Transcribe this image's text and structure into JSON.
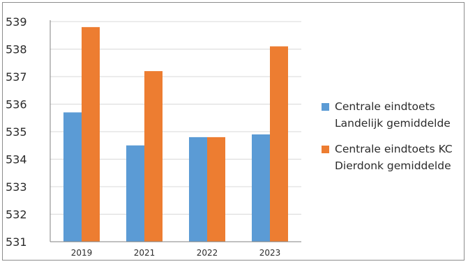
{
  "chart_data": {
    "type": "bar",
    "title": "",
    "xlabel": "",
    "ylabel": "",
    "categories": [
      "2019",
      "2021",
      "2022",
      "2023"
    ],
    "ylim": [
      531,
      539
    ],
    "yticks": [
      "531",
      "532",
      "533",
      "534",
      "535",
      "536",
      "537",
      "538",
      "539"
    ],
    "grid": true,
    "legend_position": "right",
    "series": [
      {
        "name": "Centrale eindtoets Landelijk gemiddelde",
        "name_lines": [
          "Centrale eindtoets",
          "Landelijk gemiddelde"
        ],
        "color": "#5b9bd5",
        "values": [
          535.7,
          534.5,
          534.8,
          534.9
        ]
      },
      {
        "name": "Centrale eindtoets KC Dierdonk gemiddelde",
        "name_lines": [
          "Centrale eindtoets KC",
          "Dierdonk gemiddelde"
        ],
        "color": "#ed7d31",
        "values": [
          538.8,
          537.2,
          534.8,
          538.1
        ]
      }
    ]
  }
}
